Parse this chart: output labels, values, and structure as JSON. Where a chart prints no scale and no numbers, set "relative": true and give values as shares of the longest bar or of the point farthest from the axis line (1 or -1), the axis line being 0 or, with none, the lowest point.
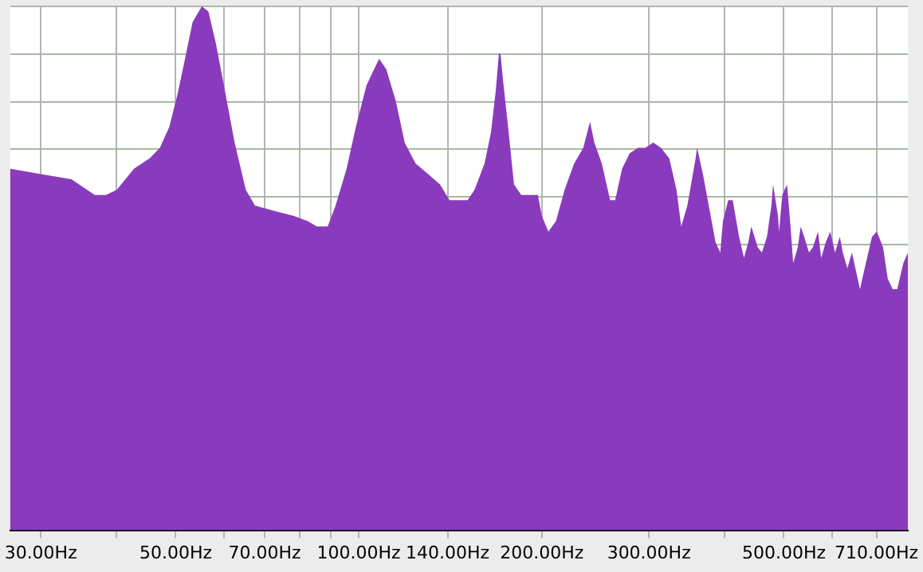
{
  "chart_data": {
    "type": "area",
    "relative": true,
    "log": "x",
    "grid": true,
    "color": "#8a3bbd",
    "xlim": [
      26.7,
      800
    ],
    "xticks": [
      {
        "value": 30,
        "label": "30.00Hz"
      },
      {
        "value": 40,
        "label": null
      },
      {
        "value": 50,
        "label": "50.00Hz"
      },
      {
        "value": 60,
        "label": null
      },
      {
        "value": 70,
        "label": "70.00Hz"
      },
      {
        "value": 80,
        "label": null
      },
      {
        "value": 90,
        "label": null
      },
      {
        "value": 100,
        "label": "100.00Hz"
      },
      {
        "value": 140,
        "label": "140.00Hz"
      },
      {
        "value": 200,
        "label": "200.00Hz"
      },
      {
        "value": 300,
        "label": "300.00Hz"
      },
      {
        "value": 400,
        "label": null
      },
      {
        "value": 500,
        "label": "500.00Hz"
      },
      {
        "value": 600,
        "label": null
      },
      {
        "value": 710,
        "label": "710.00Hz"
      }
    ],
    "x": [
      26.7,
      30.0,
      33.7,
      36.8,
      38.4,
      40.0,
      42.7,
      45.3,
      47.1,
      48.8,
      50.3,
      51.8,
      53.3,
      55.2,
      56.6,
      58.2,
      60.0,
      62.5,
      65.2,
      67.5,
      72.4,
      78.2,
      82.4,
      85.3,
      88.9,
      91.6,
      95.5,
      98.9,
      103,
      108,
      111,
      115,
      119,
      124,
      130,
      136,
      141,
      147,
      151,
      155,
      161,
      165,
      168,
      170,
      171,
      173,
      176,
      180,
      185,
      191,
      197,
      200,
      205,
      211,
      218,
      226,
      234,
      240,
      241,
      244,
      251,
      259,
      264,
      271,
      279,
      288,
      296,
      305,
      314,
      324,
      333,
      339,
      347,
      358,
      360,
      368,
      379,
      386,
      393,
      397,
      405,
      412,
      422,
      430,
      437,
      442,
      453,
      460,
      469,
      477,
      480,
      489,
      491,
      497,
      506,
      512,
      518,
      527,
      533,
      540,
      550,
      558,
      569,
      576,
      586,
      596,
      607,
      618,
      625,
      636,
      647,
      667,
      679,
      698,
      711,
      728,
      741,
      755,
      768,
      786,
      800
    ],
    "values": [
      0.69,
      0.68,
      0.67,
      0.64,
      0.64,
      0.65,
      0.69,
      0.71,
      0.73,
      0.77,
      0.83,
      0.9,
      0.97,
      1,
      0.99,
      0.93,
      0.85,
      0.74,
      0.65,
      0.62,
      0.61,
      0.6,
      0.59,
      0.58,
      0.58,
      0.62,
      0.69,
      0.77,
      0.85,
      0.9,
      0.88,
      0.82,
      0.74,
      0.7,
      0.68,
      0.66,
      0.63,
      0.63,
      0.63,
      0.65,
      0.7,
      0.76,
      0.84,
      0.91,
      0.91,
      0.85,
      0.77,
      0.66,
      0.64,
      0.64,
      0.64,
      0.6,
      0.57,
      0.59,
      0.65,
      0.7,
      0.73,
      0.78,
      0.78,
      0.74,
      0.7,
      0.63,
      0.63,
      0.69,
      0.72,
      0.73,
      0.73,
      0.74,
      0.73,
      0.71,
      0.65,
      0.58,
      0.62,
      0.71,
      0.73,
      0.68,
      0.6,
      0.55,
      0.53,
      0.59,
      0.63,
      0.63,
      0.56,
      0.52,
      0.55,
      0.58,
      0.54,
      0.53,
      0.56,
      0.62,
      0.66,
      0.6,
      0.57,
      0.64,
      0.66,
      0.59,
      0.51,
      0.54,
      0.58,
      0.56,
      0.53,
      0.54,
      0.57,
      0.52,
      0.55,
      0.57,
      0.53,
      0.56,
      0.53,
      0.5,
      0.53,
      0.46,
      0.5,
      0.56,
      0.57,
      0.54,
      0.48,
      0.46,
      0.46,
      0.51,
      0.53
    ]
  }
}
